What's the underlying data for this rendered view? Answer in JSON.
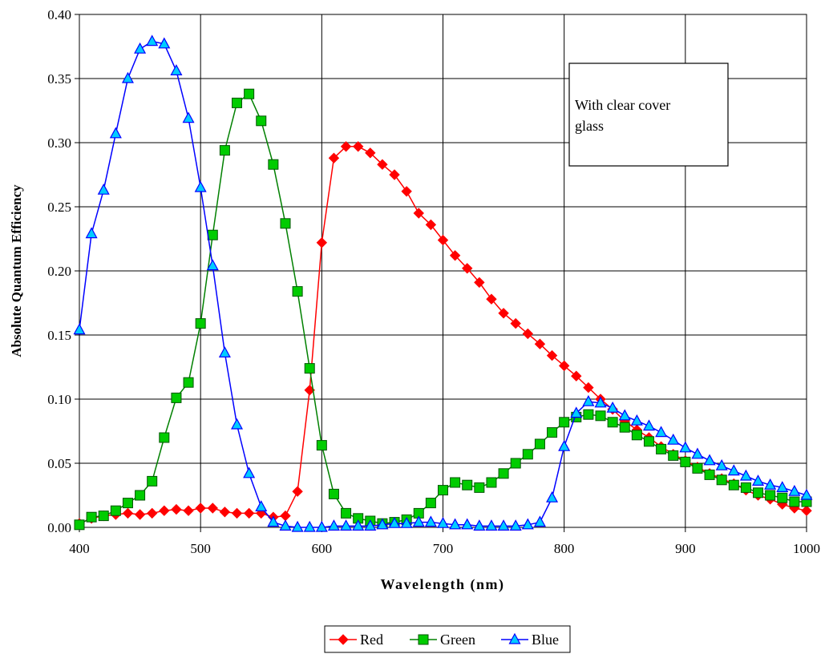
{
  "chart_data": {
    "type": "line",
    "title": "",
    "xlabel": "Wavelength (nm)",
    "ylabel": "Absolute Quantum Efficiency",
    "xlim": [
      400,
      1000
    ],
    "ylim": [
      0,
      0.4
    ],
    "x_ticks": [
      400,
      500,
      600,
      700,
      800,
      900,
      1000
    ],
    "x_tick_labels": [
      "400",
      "500",
      "600",
      "700",
      "800",
      "900",
      "1000"
    ],
    "y_ticks": [
      0,
      0.05,
      0.1,
      0.15,
      0.2,
      0.25,
      0.3,
      0.35,
      0.4
    ],
    "y_tick_labels": [
      "0.00",
      "0.05",
      "0.10",
      "0.15",
      "0.20",
      "0.25",
      "0.30",
      "0.35",
      "0.40"
    ],
    "grid": true,
    "legend_position": "bottom-center",
    "annotation": "With clear cover\nglass",
    "x": [
      400,
      410,
      420,
      430,
      440,
      450,
      460,
      470,
      480,
      490,
      500,
      510,
      520,
      530,
      540,
      550,
      560,
      570,
      580,
      590,
      600,
      610,
      620,
      630,
      640,
      650,
      660,
      670,
      680,
      690,
      700,
      710,
      720,
      730,
      740,
      750,
      760,
      770,
      780,
      790,
      800,
      810,
      820,
      830,
      840,
      850,
      860,
      870,
      880,
      890,
      900,
      910,
      920,
      930,
      940,
      950,
      960,
      970,
      980,
      990,
      1000
    ],
    "series": [
      {
        "name": "Red",
        "color": "#ff0000",
        "marker": "diamond",
        "values": [
          0.003,
          0.007,
          0.009,
          0.01,
          0.011,
          0.01,
          0.011,
          0.013,
          0.014,
          0.013,
          0.015,
          0.015,
          0.012,
          0.011,
          0.011,
          0.011,
          0.008,
          0.009,
          0.028,
          0.107,
          0.222,
          0.288,
          0.297,
          0.297,
          0.292,
          0.283,
          0.275,
          0.262,
          0.245,
          0.236,
          0.224,
          0.212,
          0.202,
          0.191,
          0.178,
          0.167,
          0.159,
          0.151,
          0.143,
          0.134,
          0.126,
          0.118,
          0.109,
          0.1,
          0.092,
          0.083,
          0.076,
          0.07,
          0.063,
          0.057,
          0.052,
          0.047,
          0.042,
          0.038,
          0.034,
          0.029,
          0.025,
          0.022,
          0.018,
          0.015,
          0.013
        ]
      },
      {
        "name": "Green",
        "color": "#00cc00",
        "marker": "square",
        "values": [
          0.002,
          0.008,
          0.009,
          0.013,
          0.019,
          0.025,
          0.036,
          0.07,
          0.101,
          0.113,
          0.159,
          0.228,
          0.294,
          0.331,
          0.338,
          0.317,
          0.283,
          0.237,
          0.184,
          0.124,
          0.064,
          0.026,
          0.011,
          0.007,
          0.005,
          0.003,
          0.004,
          0.006,
          0.011,
          0.019,
          0.029,
          0.035,
          0.033,
          0.031,
          0.035,
          0.042,
          0.05,
          0.057,
          0.065,
          0.074,
          0.082,
          0.086,
          0.088,
          0.087,
          0.082,
          0.078,
          0.072,
          0.067,
          0.061,
          0.056,
          0.051,
          0.046,
          0.041,
          0.037,
          0.033,
          0.031,
          0.027,
          0.025,
          0.023,
          0.02,
          0.02
        ]
      },
      {
        "name": "Blue",
        "color": "#00ccff",
        "marker": "triangle",
        "values": [
          0.154,
          0.229,
          0.263,
          0.307,
          0.35,
          0.373,
          0.379,
          0.377,
          0.356,
          0.319,
          0.265,
          0.204,
          0.136,
          0.08,
          0.042,
          0.016,
          0.004,
          0.001,
          0.0,
          0.0,
          0.0,
          0.001,
          0.001,
          0.001,
          0.001,
          0.002,
          0.003,
          0.003,
          0.004,
          0.004,
          0.003,
          0.002,
          0.002,
          0.001,
          0.001,
          0.001,
          0.001,
          0.002,
          0.004,
          0.023,
          0.063,
          0.089,
          0.098,
          0.097,
          0.093,
          0.087,
          0.083,
          0.079,
          0.074,
          0.068,
          0.062,
          0.057,
          0.052,
          0.048,
          0.044,
          0.04,
          0.036,
          0.033,
          0.031,
          0.028,
          0.025
        ]
      }
    ]
  }
}
